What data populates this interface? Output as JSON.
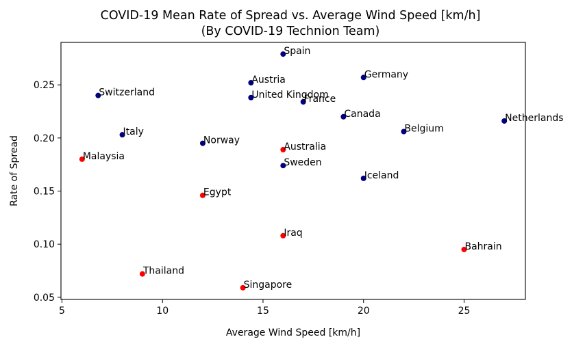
{
  "chart_data": {
    "type": "scatter",
    "title": "COVID-19 Mean Rate of Spread vs. Average Wind Speed [km/h]",
    "subtitle": "(By COVID-19 Technion Team)",
    "xlabel": "Average Wind Speed [km/h]",
    "ylabel": "Rate of Spread",
    "xlim": [
      4.95,
      28.05
    ],
    "ylim": [
      0.048,
      0.29
    ],
    "xticks": [
      5,
      10,
      15,
      20,
      25
    ],
    "xtick_labels": [
      "5",
      "10",
      "15",
      "20",
      "25"
    ],
    "yticks": [
      0.05,
      0.1,
      0.15,
      0.2,
      0.25
    ],
    "ytick_labels": [
      "0.05",
      "0.10",
      "0.15",
      "0.20",
      "0.25"
    ],
    "grid": false,
    "colors": {
      "navy": "#000080",
      "red": "#ff0000"
    },
    "points": [
      {
        "label": "Spain",
        "x": 16.0,
        "y": 0.279,
        "color": "navy"
      },
      {
        "label": "Austria",
        "x": 14.4,
        "y": 0.252,
        "color": "navy"
      },
      {
        "label": "Germany",
        "x": 20.0,
        "y": 0.257,
        "color": "navy"
      },
      {
        "label": "Switzerland",
        "x": 6.8,
        "y": 0.24,
        "color": "navy"
      },
      {
        "label": "United Kingdom",
        "x": 14.4,
        "y": 0.238,
        "color": "navy"
      },
      {
        "label": "France",
        "x": 17.0,
        "y": 0.234,
        "color": "navy"
      },
      {
        "label": "Canada",
        "x": 19.0,
        "y": 0.22,
        "color": "navy"
      },
      {
        "label": "Netherlands",
        "x": 27.0,
        "y": 0.216,
        "color": "navy"
      },
      {
        "label": "Belgium",
        "x": 22.0,
        "y": 0.206,
        "color": "navy"
      },
      {
        "label": "Italy",
        "x": 8.0,
        "y": 0.203,
        "color": "navy"
      },
      {
        "label": "Norway",
        "x": 12.0,
        "y": 0.195,
        "color": "navy"
      },
      {
        "label": "Australia",
        "x": 16.0,
        "y": 0.189,
        "color": "red"
      },
      {
        "label": "Malaysia",
        "x": 6.0,
        "y": 0.18,
        "color": "red"
      },
      {
        "label": "Sweden",
        "x": 16.0,
        "y": 0.174,
        "color": "navy"
      },
      {
        "label": "Iceland",
        "x": 20.0,
        "y": 0.162,
        "color": "navy"
      },
      {
        "label": "Egypt",
        "x": 12.0,
        "y": 0.146,
        "color": "red"
      },
      {
        "label": "Iraq",
        "x": 16.0,
        "y": 0.108,
        "color": "red"
      },
      {
        "label": "Bahrain",
        "x": 25.0,
        "y": 0.095,
        "color": "red"
      },
      {
        "label": "Thailand",
        "x": 9.0,
        "y": 0.072,
        "color": "red"
      },
      {
        "label": "Singapore",
        "x": 14.0,
        "y": 0.059,
        "color": "red"
      }
    ]
  }
}
